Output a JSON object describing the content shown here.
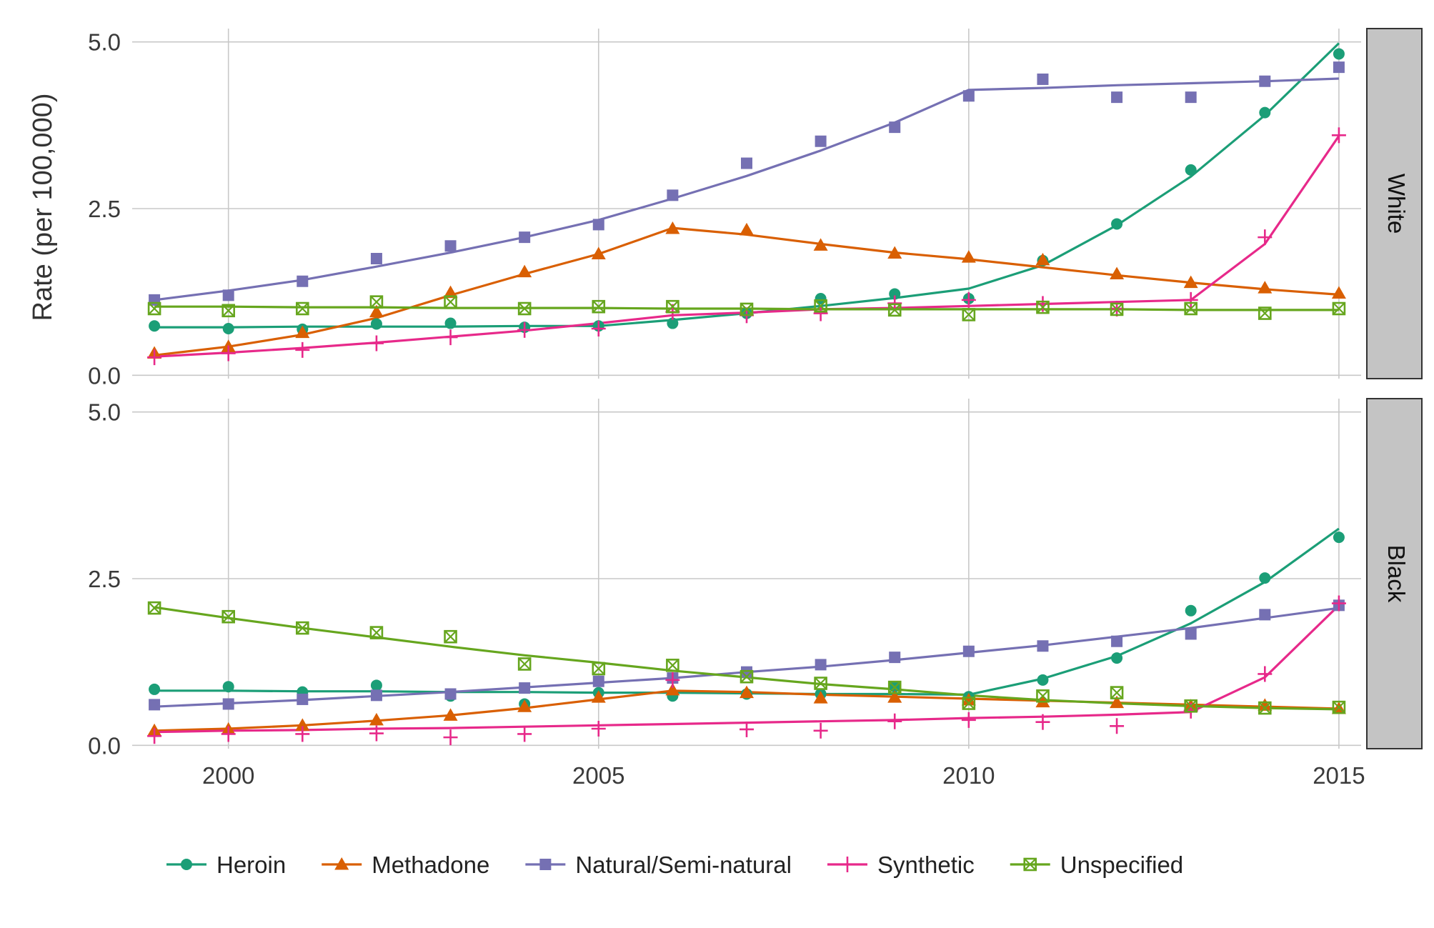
{
  "chart_data": {
    "type": "line",
    "ylabel": "Rate (per 100,000)",
    "xlabel": "",
    "x_ticks": [
      "2000",
      "2005",
      "2010",
      "2015"
    ],
    "y_ticks": [
      "0.0",
      "2.5",
      "5.0"
    ],
    "xlim": [
      1998.7,
      2015.3
    ],
    "ylim": [
      -0.05,
      5.2
    ],
    "grid": true,
    "legend_position": "bottom",
    "colors": {
      "Heroin": "#1b9e77",
      "Methadone": "#d95f02",
      "Natural/Semi-natural": "#7570b3",
      "Synthetic": "#e7298a",
      "Unspecified": "#66a61e"
    },
    "legend": [
      {
        "name": "Heroin",
        "marker": "circle"
      },
      {
        "name": "Methadone",
        "marker": "triangle"
      },
      {
        "name": "Natural/Semi-natural",
        "marker": "square"
      },
      {
        "name": "Synthetic",
        "marker": "plus"
      },
      {
        "name": "Unspecified",
        "marker": "boxed-x"
      }
    ],
    "x": [
      1999,
      2000,
      2001,
      2002,
      2003,
      2004,
      2005,
      2006,
      2007,
      2008,
      2009,
      2010,
      2011,
      2012,
      2013,
      2014,
      2015
    ],
    "panels": [
      {
        "strip": "White",
        "series": [
          {
            "name": "Heroin",
            "points": [
              0.74,
              0.7,
              0.69,
              0.77,
              0.78,
              0.72,
              0.74,
              0.78,
              0.93,
              1.15,
              1.22,
              1.15,
              1.72,
              2.27,
              3.08,
              3.94,
              4.82
            ],
            "fit": [
              0.72,
              0.72,
              0.73,
              0.73,
              0.73,
              0.74,
              0.74,
              0.83,
              0.93,
              1.04,
              1.16,
              1.3,
              1.65,
              2.25,
              2.98,
              3.9,
              4.98
            ]
          },
          {
            "name": "Methadone",
            "points": [
              0.33,
              0.43,
              0.64,
              0.95,
              1.24,
              1.55,
              1.82,
              2.2,
              2.18,
              1.95,
              1.83,
              1.77,
              1.73,
              1.52,
              1.39,
              1.31,
              1.23
            ],
            "fit": [
              0.3,
              0.43,
              0.61,
              0.86,
              1.2,
              1.52,
              1.82,
              2.21,
              2.11,
              1.97,
              1.84,
              1.74,
              1.62,
              1.5,
              1.39,
              1.29,
              1.21
            ]
          },
          {
            "name": "Natural/Semi-natural",
            "points": [
              1.13,
              1.2,
              1.41,
              1.75,
              1.94,
              2.07,
              2.26,
              2.7,
              3.18,
              3.51,
              3.72,
              4.19,
              4.44,
              4.17,
              4.17,
              4.41,
              4.62
            ],
            "fit": [
              1.13,
              1.27,
              1.43,
              1.63,
              1.84,
              2.07,
              2.33,
              2.65,
              2.99,
              3.37,
              3.79,
              4.28,
              4.31,
              4.35,
              4.38,
              4.41,
              4.45
            ]
          },
          {
            "name": "Synthetic",
            "points": [
              0.27,
              0.33,
              0.38,
              0.48,
              0.57,
              0.68,
              0.7,
              0.95,
              0.9,
              0.93,
              1.08,
              1.13,
              1.07,
              1.0,
              1.13,
              2.07,
              3.6
            ],
            "fit": [
              0.28,
              0.34,
              0.41,
              0.49,
              0.58,
              0.67,
              0.78,
              0.9,
              0.94,
              0.99,
              1.01,
              1.04,
              1.07,
              1.1,
              1.13,
              1.97,
              3.59
            ]
          },
          {
            "name": "Unspecified",
            "points": [
              1.0,
              0.97,
              1.0,
              1.1,
              1.1,
              1.0,
              1.03,
              1.03,
              0.99,
              1.04,
              0.98,
              0.91,
              1.02,
              0.99,
              1.0,
              0.93,
              1.0
            ],
            "fit": [
              1.03,
              1.03,
              1.02,
              1.02,
              1.01,
              1.01,
              1.01,
              1.0,
              1.0,
              0.99,
              0.99,
              0.99,
              0.99,
              0.99,
              0.98,
              0.98,
              0.98
            ]
          }
        ]
      },
      {
        "strip": "Black",
        "series": [
          {
            "name": "Heroin",
            "points": [
              0.84,
              0.88,
              0.8,
              0.9,
              0.74,
              0.62,
              0.79,
              0.74,
              0.77,
              0.77,
              0.88,
              0.73,
              0.98,
              1.31,
              2.02,
              2.51,
              3.12
            ],
            "fit": [
              0.82,
              0.82,
              0.81,
              0.81,
              0.8,
              0.8,
              0.79,
              0.79,
              0.78,
              0.77,
              0.77,
              0.76,
              1.0,
              1.34,
              1.83,
              2.45,
              3.25
            ]
          },
          {
            "name": "Methadone",
            "points": [
              0.22,
              0.24,
              0.3,
              0.38,
              0.45,
              0.58,
              0.72,
              0.83,
              0.79,
              0.71,
              0.72,
              0.68,
              0.65,
              0.64,
              0.59,
              0.6,
              0.55
            ]
          },
          {
            "name": "Methadone",
            "fit": [
              0.22,
              0.25,
              0.3,
              0.37,
              0.45,
              0.56,
              0.69,
              0.82,
              0.8,
              0.76,
              0.73,
              0.7,
              0.67,
              0.64,
              0.61,
              0.58,
              0.55
            ]
          },
          {
            "name": "Natural/Semi-natural",
            "points": [
              0.61,
              0.62,
              0.69,
              0.75,
              0.77,
              0.86,
              0.96,
              1.01,
              1.1,
              1.21,
              1.32,
              1.41,
              1.49,
              1.56,
              1.67,
              1.96,
              2.1
            ],
            "fit": [
              0.58,
              0.63,
              0.68,
              0.74,
              0.8,
              0.87,
              0.94,
              1.01,
              1.1,
              1.18,
              1.28,
              1.39,
              1.5,
              1.63,
              1.76,
              1.91,
              2.06
            ]
          },
          {
            "name": "Synthetic",
            "points": [
              0.14,
              0.17,
              0.17,
              0.18,
              0.12,
              0.17,
              0.25,
              0.98,
              0.24,
              0.22,
              0.36,
              0.38,
              0.35,
              0.29,
              0.52,
              1.07,
              2.13
            ],
            "fit": [
              0.2,
              0.22,
              0.23,
              0.25,
              0.26,
              0.28,
              0.3,
              0.32,
              0.34,
              0.36,
              0.38,
              0.41,
              0.43,
              0.46,
              0.5,
              1.02,
              2.1
            ]
          },
          {
            "name": "Unspecified",
            "points": [
              2.06,
              1.93,
              1.76,
              1.69,
              1.63,
              1.22,
              1.15,
              1.2,
              1.03,
              0.93,
              0.87,
              0.63,
              0.74,
              0.79,
              0.59,
              0.56,
              0.57
            ],
            "fit": [
              2.07,
              1.91,
              1.76,
              1.62,
              1.48,
              1.35,
              1.24,
              1.12,
              1.02,
              0.92,
              0.84,
              0.75,
              0.68,
              0.63,
              0.59,
              0.56,
              0.54
            ]
          }
        ]
      }
    ]
  }
}
